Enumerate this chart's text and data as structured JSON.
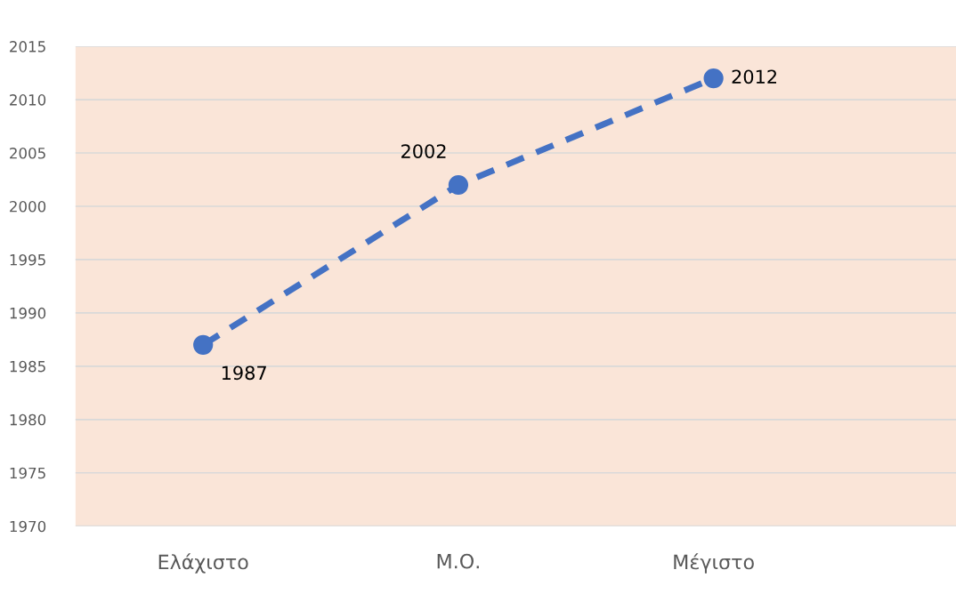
{
  "chart_data": {
    "type": "line",
    "categories": [
      "Ελάχιστο",
      "Μ.Ο.",
      "Μέγιστο"
    ],
    "series": [
      {
        "color": "#4472c4",
        "values": [
          1987,
          2002,
          2012
        ]
      }
    ],
    "ylim": [
      1970,
      2015
    ],
    "yticks": [
      1970,
      1975,
      1980,
      1985,
      1990,
      1995,
      2000,
      2005,
      2010,
      2015
    ],
    "grid": "y",
    "marker": "circle",
    "line_style": "dashed",
    "data_labels": true,
    "legend": false
  }
}
